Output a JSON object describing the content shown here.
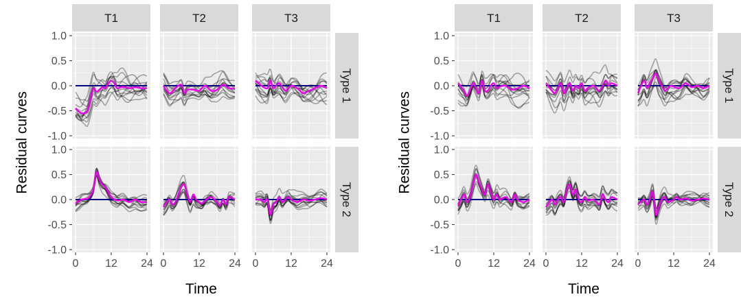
{
  "chart_data": [
    {
      "type": "line",
      "ylabel": "Residual curves",
      "xlabel": "Time",
      "columns": [
        "T1",
        "T2",
        "T3"
      ],
      "rows": [
        "Type 1",
        "Type 2"
      ],
      "xlim": [
        0,
        24
      ],
      "ylim": [
        -1.0,
        1.0
      ],
      "x_ticks": [
        0,
        12,
        24
      ],
      "x_tick_labels": [
        "0",
        "12",
        "24"
      ],
      "y_ticks": [
        -1.0,
        -0.5,
        0.0,
        0.5,
        1.0
      ],
      "y_tick_labels": [
        "-1.0",
        "-0.5",
        "0.0",
        "0.5",
        "1.0"
      ],
      "grid": true,
      "colors": {
        "curves": "#000000",
        "mean": "#ee00ee",
        "zero_line": "#000080",
        "panel": "#ebebeb",
        "strip": "#d9d9d9"
      },
      "mean_curves": {
        "Type 1": {
          "T1": [
            [
              0,
              -0.45
            ],
            [
              2,
              -0.55
            ],
            [
              4,
              -0.5
            ],
            [
              5,
              -0.28
            ],
            [
              6,
              -0.05
            ],
            [
              7,
              -0.12
            ],
            [
              8,
              -0.08
            ],
            [
              9,
              -0.03
            ],
            [
              10,
              -0.05
            ],
            [
              11,
              0.05
            ],
            [
              12,
              0.1
            ],
            [
              13,
              0.05
            ],
            [
              14,
              -0.05
            ],
            [
              16,
              -0.02
            ],
            [
              18,
              -0.05
            ],
            [
              20,
              -0.03
            ],
            [
              22,
              -0.05
            ],
            [
              24,
              -0.05
            ]
          ],
          "T2": [
            [
              0,
              0.0
            ],
            [
              2,
              -0.15
            ],
            [
              4,
              -0.05
            ],
            [
              6,
              0.02
            ],
            [
              7,
              -0.15
            ],
            [
              8,
              -0.08
            ],
            [
              10,
              -0.08
            ],
            [
              12,
              -0.1
            ],
            [
              14,
              0.0
            ],
            [
              16,
              -0.1
            ],
            [
              18,
              -0.08
            ],
            [
              20,
              0.02
            ],
            [
              22,
              -0.05
            ],
            [
              24,
              -0.05
            ]
          ],
          "T3": [
            [
              0,
              0.1
            ],
            [
              2,
              0.0
            ],
            [
              4,
              -0.05
            ],
            [
              5,
              0.1
            ],
            [
              6,
              -0.05
            ],
            [
              8,
              0.05
            ],
            [
              10,
              -0.1
            ],
            [
              12,
              0.0
            ],
            [
              14,
              -0.05
            ],
            [
              16,
              -0.15
            ],
            [
              18,
              -0.1
            ],
            [
              20,
              -0.05
            ],
            [
              22,
              0.0
            ],
            [
              24,
              -0.05
            ]
          ]
        },
        "Type 2": {
          "T1": [
            [
              0,
              -0.08
            ],
            [
              2,
              0.0
            ],
            [
              4,
              0.02
            ],
            [
              5,
              0.08
            ],
            [
              6,
              0.2
            ],
            [
              7,
              0.55
            ],
            [
              8,
              0.4
            ],
            [
              9,
              0.3
            ],
            [
              10,
              0.25
            ],
            [
              11,
              0.15
            ],
            [
              12,
              0.05
            ],
            [
              14,
              -0.02
            ],
            [
              16,
              0.0
            ],
            [
              18,
              -0.05
            ],
            [
              20,
              0.0
            ],
            [
              22,
              -0.05
            ],
            [
              24,
              -0.05
            ]
          ],
          "T2": [
            [
              0,
              -0.15
            ],
            [
              2,
              0.0
            ],
            [
              3,
              -0.1
            ],
            [
              4,
              -0.05
            ],
            [
              5,
              0.1
            ],
            [
              6,
              0.25
            ],
            [
              7,
              0.3
            ],
            [
              8,
              0.1
            ],
            [
              9,
              -0.05
            ],
            [
              10,
              0.1
            ],
            [
              11,
              0.0
            ],
            [
              12,
              -0.05
            ],
            [
              13,
              -0.08
            ],
            [
              14,
              -0.02
            ],
            [
              16,
              0.05
            ],
            [
              18,
              -0.05
            ],
            [
              19,
              -0.12
            ],
            [
              20,
              0.0
            ],
            [
              21,
              -0.1
            ],
            [
              22,
              0.05
            ],
            [
              24,
              0.0
            ]
          ],
          "T3": [
            [
              0,
              0.0
            ],
            [
              2,
              0.0
            ],
            [
              3,
              -0.05
            ],
            [
              4,
              0.0
            ],
            [
              5,
              -0.3
            ],
            [
              6,
              -0.1
            ],
            [
              7,
              -0.05
            ],
            [
              8,
              0.05
            ],
            [
              9,
              -0.05
            ],
            [
              10,
              0.0
            ],
            [
              11,
              0.05
            ],
            [
              12,
              0.0
            ],
            [
              14,
              -0.05
            ],
            [
              16,
              0.0
            ],
            [
              18,
              -0.02
            ],
            [
              20,
              0.0
            ],
            [
              22,
              0.03
            ],
            [
              24,
              0.0
            ]
          ]
        }
      }
    },
    {
      "type": "line",
      "ylabel": "Residual curves",
      "xlabel": "Time",
      "columns": [
        "T1",
        "T2",
        "T3"
      ],
      "rows": [
        "Type 1",
        "Type 2"
      ],
      "xlim": [
        0,
        24
      ],
      "ylim": [
        -1.0,
        1.0
      ],
      "x_ticks": [
        0,
        12,
        24
      ],
      "x_tick_labels": [
        "0",
        "12",
        "24"
      ],
      "y_ticks": [
        -1.0,
        -0.5,
        0.0,
        0.5,
        1.0
      ],
      "y_tick_labels": [
        "-1.0",
        "-0.5",
        "0.0",
        "0.5",
        "1.0"
      ],
      "grid": true,
      "colors": {
        "curves": "#000000",
        "mean": "#ee00ee",
        "zero_line": "#000080",
        "panel": "#ebebeb",
        "strip": "#d9d9d9"
      },
      "mean_curves": {
        "Type 1": {
          "T1": [
            [
              0,
              0.05
            ],
            [
              2,
              -0.1
            ],
            [
              3,
              -0.2
            ],
            [
              4,
              -0.1
            ],
            [
              5,
              0.05
            ],
            [
              6,
              -0.05
            ],
            [
              7,
              -0.15
            ],
            [
              8,
              0.1
            ],
            [
              9,
              -0.1
            ],
            [
              10,
              -0.1
            ],
            [
              11,
              0.0
            ],
            [
              12,
              0.05
            ],
            [
              13,
              -0.05
            ],
            [
              14,
              -0.02
            ],
            [
              16,
              0.0
            ],
            [
              18,
              -0.08
            ],
            [
              20,
              -0.05
            ],
            [
              22,
              0.0
            ],
            [
              24,
              -0.05
            ]
          ],
          "T2": [
            [
              0,
              0.05
            ],
            [
              2,
              -0.1
            ],
            [
              3,
              -0.15
            ],
            [
              4,
              -0.05
            ],
            [
              5,
              0.05
            ],
            [
              6,
              -0.15
            ],
            [
              7,
              -0.05
            ],
            [
              8,
              0.05
            ],
            [
              9,
              -0.1
            ],
            [
              10,
              0.0
            ],
            [
              11,
              -0.05
            ],
            [
              12,
              0.05
            ],
            [
              13,
              -0.1
            ],
            [
              14,
              -0.05
            ],
            [
              16,
              0.0
            ],
            [
              18,
              -0.1
            ],
            [
              20,
              0.1
            ],
            [
              21,
              0.0
            ],
            [
              22,
              0.05
            ],
            [
              24,
              0.0
            ]
          ],
          "T3": [
            [
              0,
              -0.15
            ],
            [
              2,
              0.1
            ],
            [
              3,
              -0.05
            ],
            [
              4,
              0.05
            ],
            [
              5,
              0.15
            ],
            [
              6,
              0.25
            ],
            [
              7,
              0.1
            ],
            [
              8,
              0.0
            ],
            [
              9,
              -0.1
            ],
            [
              10,
              -0.05
            ],
            [
              11,
              0.0
            ],
            [
              12,
              -0.02
            ],
            [
              14,
              -0.05
            ],
            [
              16,
              0.05
            ],
            [
              18,
              -0.03
            ],
            [
              20,
              0.0
            ],
            [
              22,
              -0.05
            ],
            [
              24,
              0.0
            ]
          ]
        },
        "Type 2": {
          "T1": [
            [
              0,
              -0.12
            ],
            [
              2,
              0.1
            ],
            [
              3,
              -0.05
            ],
            [
              4,
              0.05
            ],
            [
              5,
              0.3
            ],
            [
              6,
              0.5
            ],
            [
              7,
              0.35
            ],
            [
              8,
              0.2
            ],
            [
              9,
              0.1
            ],
            [
              10,
              0.3
            ],
            [
              11,
              0.15
            ],
            [
              12,
              0.0
            ],
            [
              13,
              0.1
            ],
            [
              14,
              0.0
            ],
            [
              16,
              0.05
            ],
            [
              18,
              -0.05
            ],
            [
              19,
              0.1
            ],
            [
              20,
              0.0
            ],
            [
              22,
              -0.05
            ],
            [
              24,
              0.0
            ]
          ],
          "T2": [
            [
              0,
              -0.15
            ],
            [
              2,
              0.0
            ],
            [
              3,
              -0.1
            ],
            [
              4,
              0.0
            ],
            [
              5,
              0.05
            ],
            [
              6,
              -0.05
            ],
            [
              7,
              0.2
            ],
            [
              8,
              0.3
            ],
            [
              9,
              0.1
            ],
            [
              10,
              0.2
            ],
            [
              11,
              0.0
            ],
            [
              12,
              -0.05
            ],
            [
              13,
              0.05
            ],
            [
              14,
              -0.02
            ],
            [
              16,
              0.0
            ],
            [
              18,
              -0.1
            ],
            [
              19,
              0.1
            ],
            [
              20,
              0.0
            ],
            [
              21,
              -0.05
            ],
            [
              22,
              0.05
            ],
            [
              24,
              0.0
            ]
          ],
          "T3": [
            [
              0,
              -0.1
            ],
            [
              2,
              0.0
            ],
            [
              3,
              -0.1
            ],
            [
              4,
              0.0
            ],
            [
              5,
              0.15
            ],
            [
              6,
              -0.3
            ],
            [
              7,
              -0.15
            ],
            [
              8,
              0.0
            ],
            [
              9,
              0.05
            ],
            [
              10,
              -0.05
            ],
            [
              12,
              0.0
            ],
            [
              13,
              0.05
            ],
            [
              14,
              0.0
            ],
            [
              16,
              0.02
            ],
            [
              18,
              -0.02
            ],
            [
              20,
              0.0
            ],
            [
              22,
              0.02
            ],
            [
              24,
              0.0
            ]
          ]
        }
      }
    }
  ]
}
